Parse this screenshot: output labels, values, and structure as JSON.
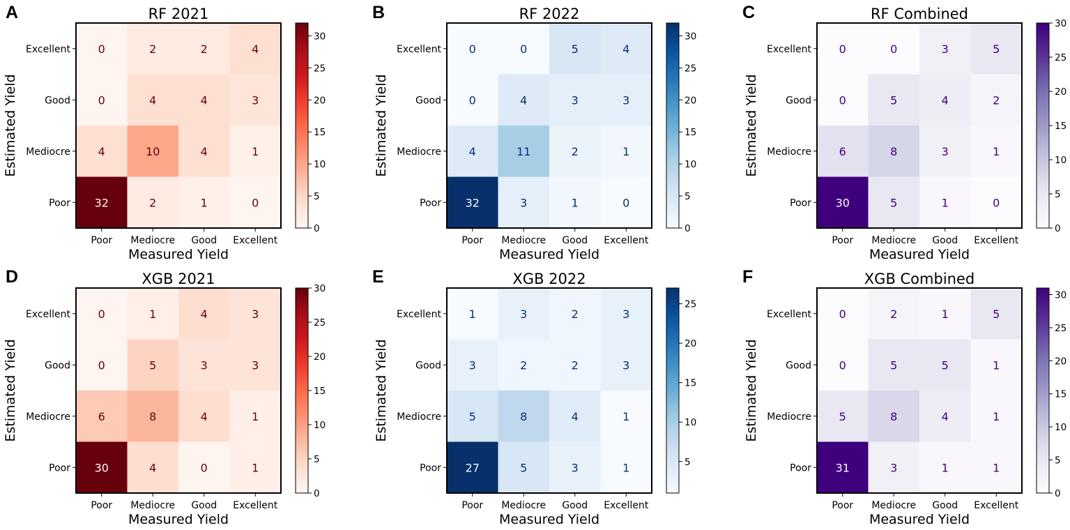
{
  "chart_data": [
    {
      "panel": "A",
      "type": "heatmap",
      "title": "RF 2021",
      "xlabel": "Measured Yield",
      "ylabel": "Estimated Yield",
      "x_categories": [
        "Poor",
        "Mediocre",
        "Good",
        "Excellent"
      ],
      "y_categories": [
        "Excellent",
        "Good",
        "Mediocre",
        "Poor"
      ],
      "matrix": [
        [
          0,
          2,
          2,
          4
        ],
        [
          0,
          4,
          4,
          3
        ],
        [
          4,
          10,
          4,
          1
        ],
        [
          32,
          2,
          1,
          0
        ]
      ],
      "colormap": "Reds",
      "color_low": "#fff5f0",
      "color_high": "#67000d",
      "colorbar": {
        "range": [
          0,
          32
        ],
        "ticks": [
          0,
          5,
          10,
          15,
          20,
          25,
          30
        ]
      }
    },
    {
      "panel": "B",
      "type": "heatmap",
      "title": "RF 2022",
      "xlabel": "Measured Yield",
      "ylabel": "Estimated Yield",
      "x_categories": [
        "Poor",
        "Mediocre",
        "Good",
        "Excellent"
      ],
      "y_categories": [
        "Excellent",
        "Good",
        "Mediocre",
        "Poor"
      ],
      "matrix": [
        [
          0,
          0,
          5,
          4
        ],
        [
          0,
          4,
          3,
          3
        ],
        [
          4,
          11,
          2,
          1
        ],
        [
          32,
          3,
          1,
          0
        ]
      ],
      "colormap": "Blues",
      "color_low": "#f7fbff",
      "color_high": "#08306b",
      "colorbar": {
        "range": [
          0,
          32
        ],
        "ticks": [
          0,
          5,
          10,
          15,
          20,
          25,
          30
        ]
      }
    },
    {
      "panel": "C",
      "type": "heatmap",
      "title": "RF Combined",
      "xlabel": "Measured Yield",
      "ylabel": "Estimated Yield",
      "x_categories": [
        "Poor",
        "Mediocre",
        "Good",
        "Excellent"
      ],
      "y_categories": [
        "Excellent",
        "Good",
        "Mediocre",
        "Poor"
      ],
      "matrix": [
        [
          0,
          0,
          3,
          5
        ],
        [
          0,
          5,
          4,
          2
        ],
        [
          6,
          8,
          3,
          1
        ],
        [
          30,
          5,
          1,
          0
        ]
      ],
      "colormap": "Purples",
      "color_low": "#fcfbfd",
      "color_high": "#3f007d",
      "colorbar": {
        "range": [
          0,
          30
        ],
        "ticks": [
          0,
          5,
          10,
          15,
          20,
          25,
          30
        ]
      }
    },
    {
      "panel": "D",
      "type": "heatmap",
      "title": "XGB 2021",
      "xlabel": "Measured Yield",
      "ylabel": "Estimated Yield",
      "x_categories": [
        "Poor",
        "Mediocre",
        "Good",
        "Excellent"
      ],
      "y_categories": [
        "Excellent",
        "Good",
        "Mediocre",
        "Poor"
      ],
      "matrix": [
        [
          0,
          1,
          4,
          3
        ],
        [
          0,
          5,
          3,
          3
        ],
        [
          6,
          8,
          4,
          1
        ],
        [
          30,
          4,
          0,
          1
        ]
      ],
      "colormap": "Reds",
      "color_low": "#fff5f0",
      "color_high": "#67000d",
      "colorbar": {
        "range": [
          0,
          30
        ],
        "ticks": [
          0,
          5,
          10,
          15,
          20,
          25,
          30
        ]
      }
    },
    {
      "panel": "E",
      "type": "heatmap",
      "title": "XGB 2022",
      "xlabel": "Measured Yield",
      "ylabel": "Estimated Yield",
      "x_categories": [
        "Poor",
        "Mediocre",
        "Good",
        "Excellent"
      ],
      "y_categories": [
        "Excellent",
        "Good",
        "Mediocre",
        "Poor"
      ],
      "matrix": [
        [
          1,
          3,
          2,
          3
        ],
        [
          3,
          2,
          2,
          3
        ],
        [
          5,
          8,
          4,
          1
        ],
        [
          27,
          5,
          3,
          1
        ]
      ],
      "colormap": "Blues",
      "color_low": "#f7fbff",
      "color_high": "#08306b",
      "colorbar": {
        "range": [
          1,
          27
        ],
        "ticks": [
          5,
          10,
          15,
          20,
          25
        ]
      }
    },
    {
      "panel": "F",
      "type": "heatmap",
      "title": "XGB Combined",
      "xlabel": "Measured Yield",
      "ylabel": "Estimated Yield",
      "x_categories": [
        "Poor",
        "Mediocre",
        "Good",
        "Excellent"
      ],
      "y_categories": [
        "Excellent",
        "Good",
        "Mediocre",
        "Poor"
      ],
      "matrix": [
        [
          0,
          2,
          1,
          5
        ],
        [
          0,
          5,
          5,
          1
        ],
        [
          5,
          8,
          4,
          1
        ],
        [
          31,
          3,
          1,
          1
        ]
      ],
      "colormap": "Purples",
      "color_low": "#fcfbfd",
      "color_high": "#3f007d",
      "colorbar": {
        "range": [
          0,
          31
        ],
        "ticks": [
          0,
          5,
          10,
          15,
          20,
          25,
          30
        ]
      }
    }
  ]
}
